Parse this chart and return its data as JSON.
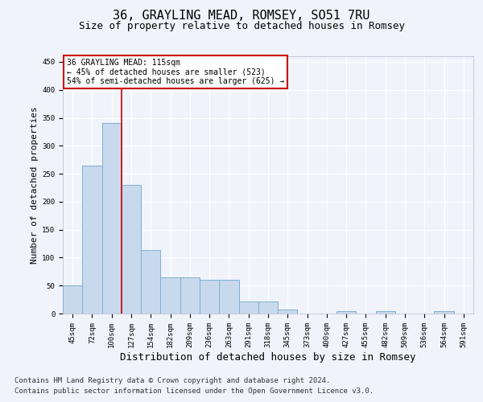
{
  "title": "36, GRAYLING MEAD, ROMSEY, SO51 7RU",
  "subtitle": "Size of property relative to detached houses in Romsey",
  "xlabel": "Distribution of detached houses by size in Romsey",
  "ylabel": "Number of detached properties",
  "categories": [
    "45sqm",
    "72sqm",
    "100sqm",
    "127sqm",
    "154sqm",
    "182sqm",
    "209sqm",
    "236sqm",
    "263sqm",
    "291sqm",
    "318sqm",
    "345sqm",
    "373sqm",
    "400sqm",
    "427sqm",
    "455sqm",
    "482sqm",
    "509sqm",
    "536sqm",
    "564sqm",
    "591sqm"
  ],
  "values": [
    50,
    265,
    340,
    230,
    113,
    65,
    65,
    60,
    60,
    22,
    22,
    7,
    0,
    0,
    5,
    0,
    5,
    0,
    0,
    5,
    0
  ],
  "bar_color": "#c9d9ed",
  "bar_edge_color": "#7bafd4",
  "vline_color": "#cc0000",
  "annotation_box_text": "36 GRAYLING MEAD: 115sqm\n← 45% of detached houses are smaller (523)\n54% of semi-detached houses are larger (625) →",
  "annotation_box_color": "#cc0000",
  "ylim": [
    0,
    460
  ],
  "yticks": [
    0,
    50,
    100,
    150,
    200,
    250,
    300,
    350,
    400,
    450
  ],
  "footer_line1": "Contains HM Land Registry data © Crown copyright and database right 2024.",
  "footer_line2": "Contains public sector information licensed under the Open Government Licence v3.0.",
  "background_color": "#f0f4fa",
  "grid_color": "#ffffff",
  "title_fontsize": 11,
  "subtitle_fontsize": 9,
  "ylabel_fontsize": 8,
  "xlabel_fontsize": 9,
  "tick_fontsize": 6.5,
  "annotation_fontsize": 7,
  "footer_fontsize": 6.5
}
